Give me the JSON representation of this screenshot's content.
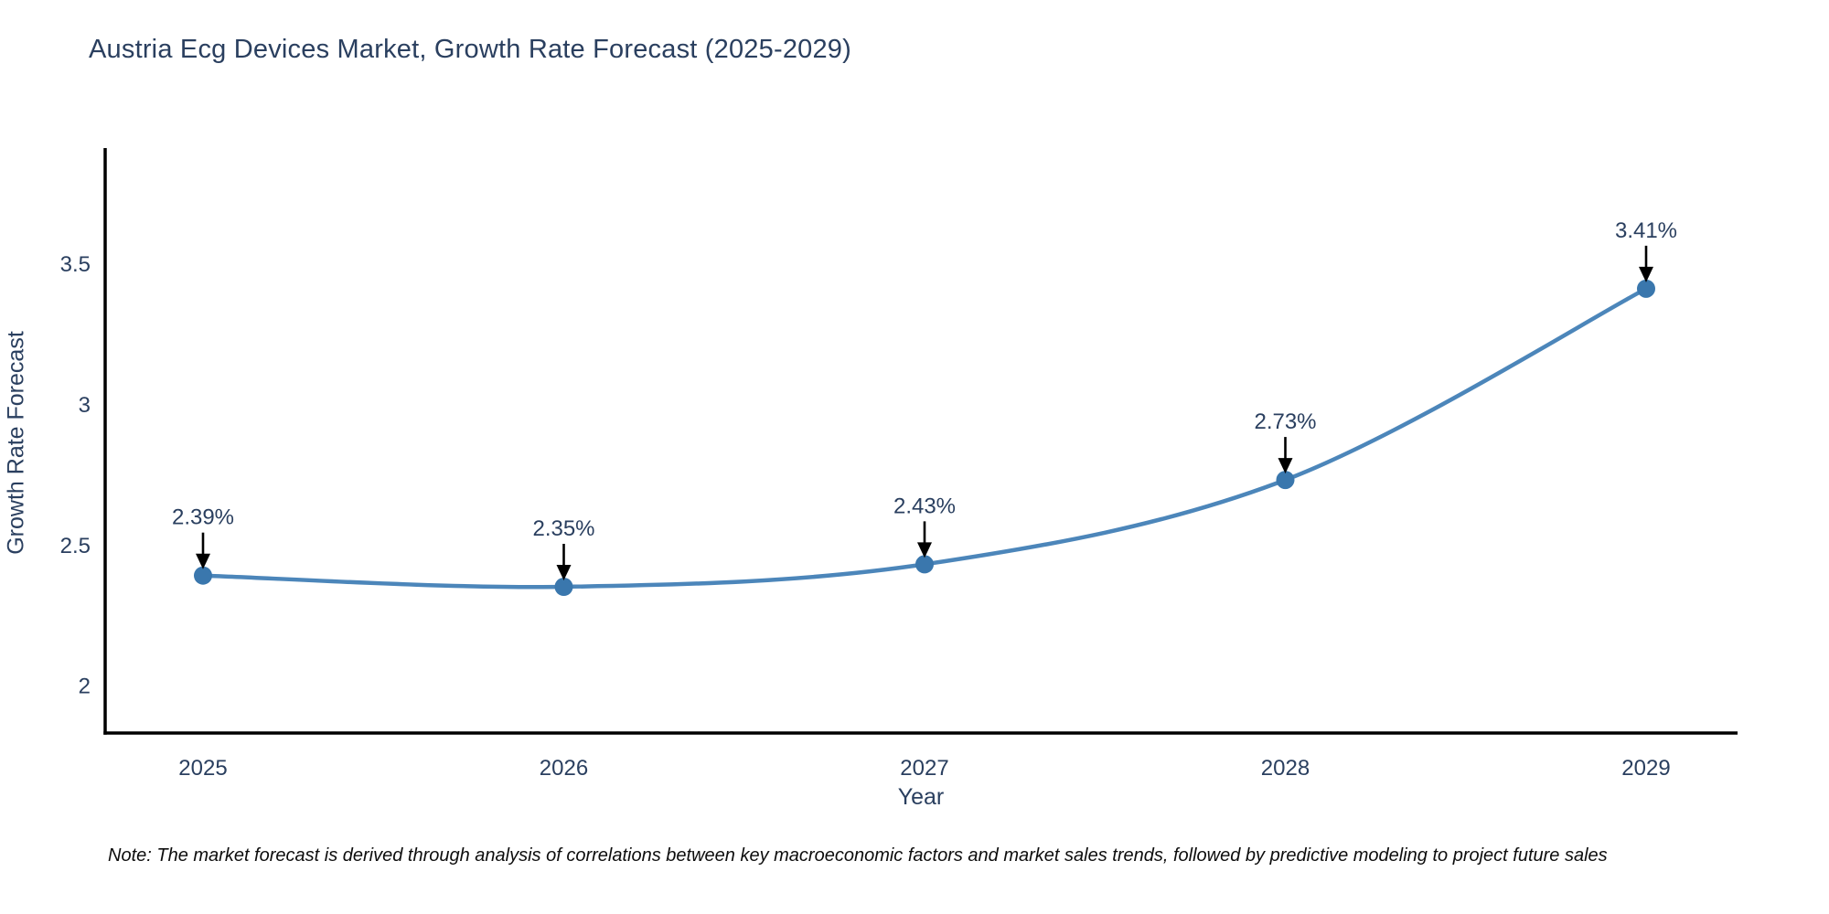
{
  "title": "Austria Ecg Devices Market, Growth Rate Forecast (2025-2029)",
  "note": "Note: The market forecast is derived through analysis of correlations between key macroeconomic factors and market sales trends, followed by predictive modeling to project future sales",
  "chart_data": {
    "type": "line",
    "title": "Austria Ecg Devices Market, Growth Rate Forecast (2025-2029)",
    "xlabel": "Year",
    "ylabel": "Growth Rate Forecast",
    "categories": [
      "2025",
      "2026",
      "2027",
      "2028",
      "2029"
    ],
    "series": [
      {
        "name": "Growth Rate Forecast",
        "values": [
          2.39,
          2.35,
          2.43,
          2.73,
          3.41
        ],
        "point_labels": [
          "2.39%",
          "2.35%",
          "2.43%",
          "2.73%",
          "3.41%"
        ]
      }
    ],
    "yticks": [
      2,
      2.5,
      3,
      3.5
    ],
    "ytick_labels": [
      "2",
      "2.5",
      "3",
      "3.5"
    ],
    "ylim": [
      1.83,
      3.91
    ],
    "line_shape": "spline",
    "grid": false,
    "legend": "none",
    "colors": {
      "line": "#4c86ba",
      "marker": "#3a77ad",
      "axis": "#000000",
      "tick_text": "#2a3f5f",
      "annotation_text": "#2a3f5f",
      "arrow": "#000000"
    }
  }
}
